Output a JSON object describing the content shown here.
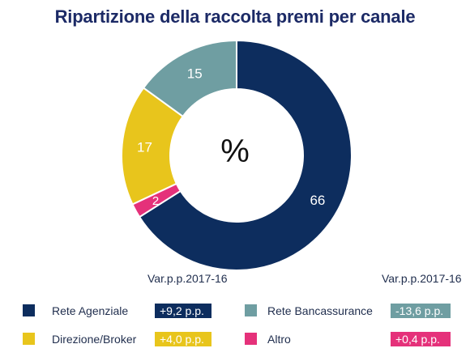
{
  "chart_data": {
    "type": "pie",
    "donut": true,
    "title": "Ripartizione della raccolta premi per canale",
    "center_label": "%",
    "slices": [
      {
        "label": "Rete Agenziale",
        "value": 66,
        "color": "#0d2d5e",
        "label_color": "#ffffff"
      },
      {
        "label": "Altro",
        "value": 2,
        "color": "#e5317a",
        "label_color": "#ffffff"
      },
      {
        "label": "Direzione/Broker",
        "value": 17,
        "color": "#e8c51c",
        "label_color": "#ffffff"
      },
      {
        "label": "Rete Bancassurance",
        "value": 15,
        "color": "#6f9ea2",
        "label_color": "#ffffff"
      }
    ],
    "variation_header": "Var.p.p.2017-16",
    "legend": [
      {
        "name": "Rete Agenziale",
        "color": "#0d2d5e",
        "variation": "+9,2 p.p."
      },
      {
        "name": "Rete Bancassurance",
        "color": "#6f9ea2",
        "variation": "-13,6 p.p."
      },
      {
        "name": "Direzione/Broker",
        "color": "#e8c51c",
        "variation": "+4,0 p.p."
      },
      {
        "name": "Altro",
        "color": "#e5317a",
        "variation": "+0,4 p.p."
      }
    ]
  }
}
